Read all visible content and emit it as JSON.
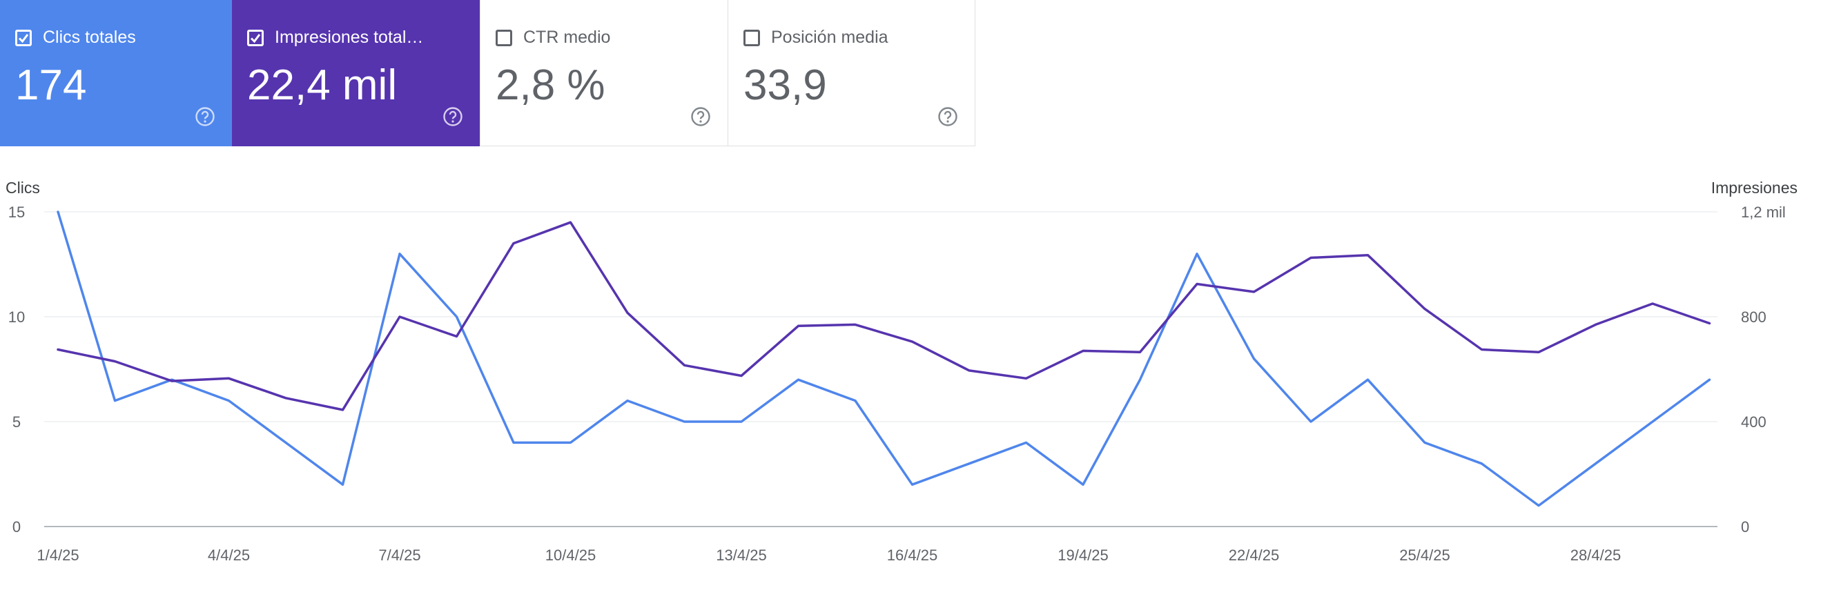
{
  "cards": [
    {
      "label": "Clics totales",
      "value": "174",
      "checked": true,
      "color": "#4f86ec"
    },
    {
      "label": "Impresiones total…",
      "value": "22,4 mil",
      "checked": true,
      "color": "#5634ae"
    },
    {
      "label": "CTR medio",
      "value": "2,8 %",
      "checked": false,
      "color": "#ffffff"
    },
    {
      "label": "Posición media",
      "value": "33,9",
      "checked": false,
      "color": "#ffffff"
    }
  ],
  "chart_data": {
    "type": "line",
    "x": [
      "1/4/25",
      "2/4/25",
      "3/4/25",
      "4/4/25",
      "5/4/25",
      "6/4/25",
      "7/4/25",
      "8/4/25",
      "9/4/25",
      "10/4/25",
      "11/4/25",
      "12/4/25",
      "13/4/25",
      "14/4/25",
      "15/4/25",
      "16/4/25",
      "17/4/25",
      "18/4/25",
      "19/4/25",
      "20/4/25",
      "21/4/25",
      "22/4/25",
      "23/4/25",
      "24/4/25",
      "25/4/25",
      "26/4/25",
      "27/4/25",
      "28/4/25",
      "29/4/25",
      "30/4/25"
    ],
    "x_tick_labels": [
      "1/4/25",
      "4/4/25",
      "7/4/25",
      "10/4/25",
      "13/4/25",
      "16/4/25",
      "19/4/25",
      "22/4/25",
      "25/4/25",
      "28/4/25"
    ],
    "series": [
      {
        "axis": "left",
        "color": "#4f86ec",
        "values": [
          15,
          6,
          7,
          6,
          4,
          2,
          13,
          10,
          4,
          4,
          6,
          5,
          5,
          7,
          6,
          2,
          3,
          4,
          2,
          7,
          13,
          8,
          5,
          7,
          4,
          3,
          1,
          3,
          5,
          7
        ]
      },
      {
        "axis": "right",
        "color": "#5634ae",
        "values": [
          675,
          630,
          555,
          565,
          490,
          445,
          800,
          725,
          1080,
          1160,
          815,
          615,
          575,
          765,
          770,
          705,
          595,
          565,
          670,
          665,
          925,
          895,
          1025,
          1035,
          830,
          675,
          665,
          770,
          850,
          775
        ]
      }
    ],
    "ylabel_left": "Clics",
    "ylabel_right": "Impresiones",
    "ylim_left": [
      0,
      15
    ],
    "ylim_right": [
      0,
      1200
    ],
    "yticks_left": [
      "0",
      "5",
      "10",
      "15"
    ],
    "yticks_right": [
      "0",
      "400",
      "800",
      "1,2 mil"
    ],
    "grid": true
  }
}
